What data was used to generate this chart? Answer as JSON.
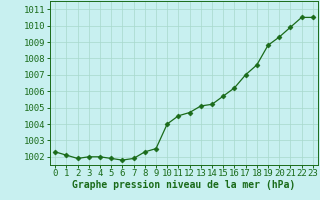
{
  "x": [
    0,
    1,
    2,
    3,
    4,
    5,
    6,
    7,
    8,
    9,
    10,
    11,
    12,
    13,
    14,
    15,
    16,
    17,
    18,
    19,
    20,
    21,
    22,
    23
  ],
  "y": [
    1002.3,
    1002.1,
    1001.9,
    1002.0,
    1002.0,
    1001.9,
    1001.8,
    1001.9,
    1002.3,
    1002.5,
    1004.0,
    1004.5,
    1004.7,
    1005.1,
    1005.2,
    1005.7,
    1006.2,
    1007.0,
    1007.6,
    1008.8,
    1009.3,
    1009.9,
    1010.5,
    1010.5
  ],
  "xlim": [
    -0.5,
    23.5
  ],
  "ylim": [
    1001.5,
    1011.5
  ],
  "yticks": [
    1002,
    1003,
    1004,
    1005,
    1006,
    1007,
    1008,
    1009,
    1010,
    1011
  ],
  "xticks": [
    0,
    1,
    2,
    3,
    4,
    5,
    6,
    7,
    8,
    9,
    10,
    11,
    12,
    13,
    14,
    15,
    16,
    17,
    18,
    19,
    20,
    21,
    22,
    23
  ],
  "xlabel": "Graphe pression niveau de la mer (hPa)",
  "line_color": "#1a6b1a",
  "marker": "D",
  "marker_size": 2.5,
  "bg_color": "#c8f0f0",
  "grid_color": "#a8d8cc",
  "tick_label_color": "#1a6b1a",
  "xlabel_color": "#1a6b1a",
  "xlabel_fontsize": 7,
  "tick_fontsize": 6.5
}
